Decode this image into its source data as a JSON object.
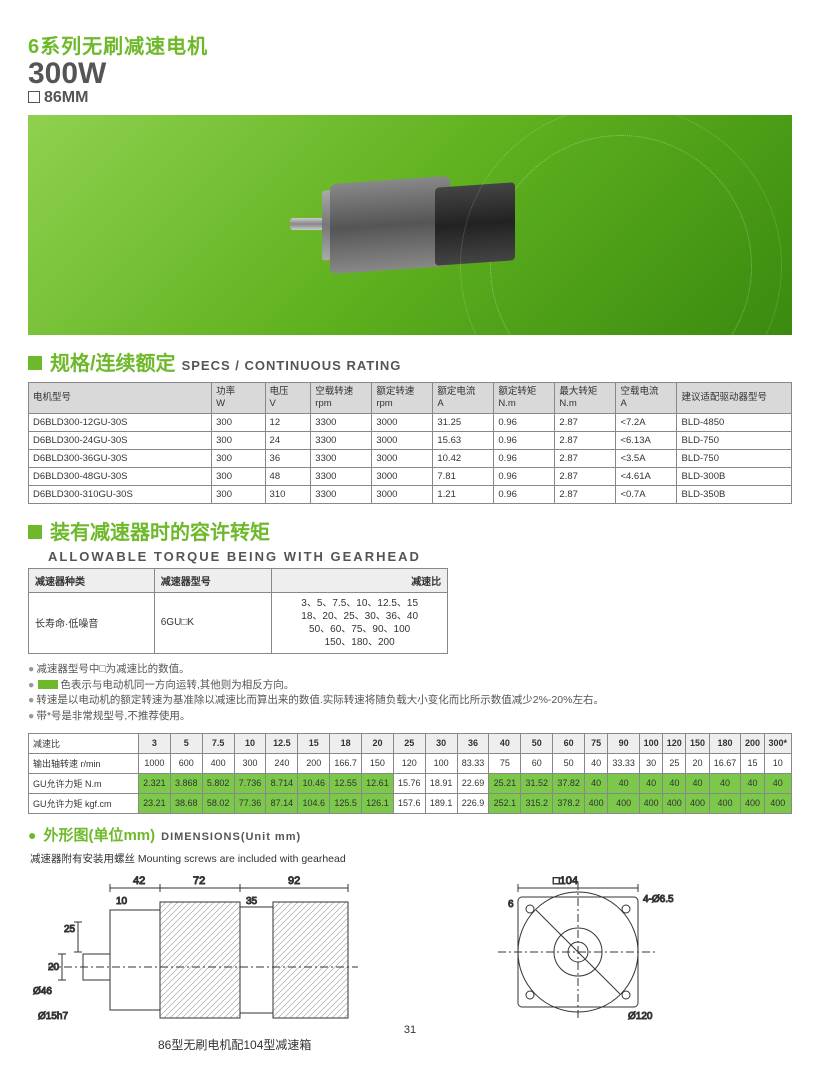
{
  "header": {
    "series_cn": "6系列无刷减速电机",
    "power": "300W",
    "size": "86MM"
  },
  "specs_section": {
    "title_cn": "规格/连续额定",
    "title_en": "SPECS / CONTINUOUS RATING",
    "columns": [
      {
        "cn": "电机型号",
        "en": ""
      },
      {
        "cn": "功率",
        "en": "W"
      },
      {
        "cn": "电压",
        "en": "V"
      },
      {
        "cn": "空载转速",
        "en": "rpm"
      },
      {
        "cn": "额定转速",
        "en": "rpm"
      },
      {
        "cn": "额定电流",
        "en": "A"
      },
      {
        "cn": "额定转矩",
        "en": "N.m"
      },
      {
        "cn": "最大转矩",
        "en": "N.m"
      },
      {
        "cn": "空载电流",
        "en": "A"
      },
      {
        "cn": "建议适配驱动器型号",
        "en": ""
      }
    ],
    "rows": [
      [
        "D6BLD300-12GU-30S",
        "300",
        "12",
        "3300",
        "3000",
        "31.25",
        "0.96",
        "2.87",
        "<7.2A",
        "BLD-4850"
      ],
      [
        "D6BLD300-24GU-30S",
        "300",
        "24",
        "3300",
        "3000",
        "15.63",
        "0.96",
        "2.87",
        "<6.13A",
        "BLD-750"
      ],
      [
        "D6BLD300-36GU-30S",
        "300",
        "36",
        "3300",
        "3000",
        "10.42",
        "0.96",
        "2.87",
        "<3.5A",
        "BLD-750"
      ],
      [
        "D6BLD300-48GU-30S",
        "300",
        "48",
        "3300",
        "3000",
        "7.81",
        "0.96",
        "2.87",
        "<4.61A",
        "BLD-300B"
      ],
      [
        "D6BLD300-310GU-30S",
        "300",
        "310",
        "3300",
        "3000",
        "1.21",
        "0.96",
        "2.87",
        "<0.7A",
        "BLD-350B"
      ]
    ]
  },
  "gearhead_section": {
    "title_cn": "装有减速器时的容许转矩",
    "title_en": "ALLOWABLE TORQUE BEING WITH GEARHEAD",
    "col1": "减速器种类",
    "col2": "减速器型号",
    "col3": "减速比",
    "v1": "长寿命·低噪音",
    "v2": "6GU□K",
    "v3": "3、5、7.5、10、12.5、15\n18、20、25、30、36、40\n50、60、75、90、100\n150、180、200"
  },
  "notes": [
    "减速器型号中□为减速比的数值。",
    "色表示与电动机同一方向运转,其他则为相反方向。",
    "转速是以电动机的额定转速为基准除以减速比而算出来的数值.实际转速将随负载大小变化而比所示数值减少2%-20%左右。",
    "带*号是非常规型号,不推荐使用。"
  ],
  "torque_table": {
    "ratios": [
      "3",
      "5",
      "7.5",
      "10",
      "12.5",
      "15",
      "18",
      "20",
      "25",
      "30",
      "36",
      "40",
      "50",
      "60",
      "75",
      "90",
      "100",
      "120",
      "150",
      "180",
      "200",
      "300*"
    ],
    "rpm": [
      "1000",
      "600",
      "400",
      "300",
      "240",
      "200",
      "166.7",
      "150",
      "120",
      "100",
      "83.33",
      "75",
      "60",
      "50",
      "40",
      "33.33",
      "30",
      "25",
      "20",
      "16.67",
      "15",
      "10"
    ],
    "nm": [
      "2.321",
      "3.868",
      "5.802",
      "7.736",
      "8.714",
      "10.46",
      "12.55",
      "12.61",
      "15.76",
      "18.91",
      "22.69",
      "25.21",
      "31.52",
      "37.82",
      "40",
      "40",
      "40",
      "40",
      "40",
      "40",
      "40",
      "40"
    ],
    "kgfcm": [
      "23.21",
      "38.68",
      "58.02",
      "77.36",
      "87.14",
      "104.6",
      "125.5",
      "126.1",
      "157.6",
      "189.1",
      "226.9",
      "252.1",
      "315.2",
      "378.2",
      "400",
      "400",
      "400",
      "400",
      "400",
      "400",
      "400",
      "400"
    ],
    "nm_green": [
      1,
      1,
      1,
      1,
      1,
      1,
      1,
      1,
      0,
      0,
      0,
      1,
      1,
      1,
      1,
      1,
      1,
      1,
      1,
      1,
      1,
      1
    ],
    "kgfcm_green": [
      1,
      1,
      1,
      1,
      1,
      1,
      1,
      1,
      0,
      0,
      0,
      1,
      1,
      1,
      1,
      1,
      1,
      1,
      1,
      1,
      1,
      1
    ],
    "row_labels": {
      "r0": "减速比",
      "r1": "输出轴转速 r/min",
      "r2": "GU允许力矩 N.m",
      "r3": "GU允许力矩 kgf.cm"
    }
  },
  "dims_section": {
    "title_cn": "外形图(单位mm)",
    "title_en": "DIMENSIONS(Unit mm)",
    "note": "减速器附有安装用螺丝  Mounting screws are included with gearhead",
    "caption": "86型无刷电机配104型减速箱",
    "side": {
      "d42": "42",
      "d72": "72",
      "d92": "92",
      "d10": "10",
      "d35": "35",
      "d25": "25",
      "d20": "20",
      "phi46": "Ø46",
      "phi15": "Ø15h7"
    },
    "front": {
      "sq104": "□104",
      "holes": "4-Ø6.5",
      "d6": "6",
      "phi120": "Ø120"
    }
  },
  "page_number": "31",
  "colors": {
    "green": "#6eb92b",
    "cell_green": "#7cc84a",
    "header_gray": "#d9d9d9",
    "border": "#888"
  }
}
